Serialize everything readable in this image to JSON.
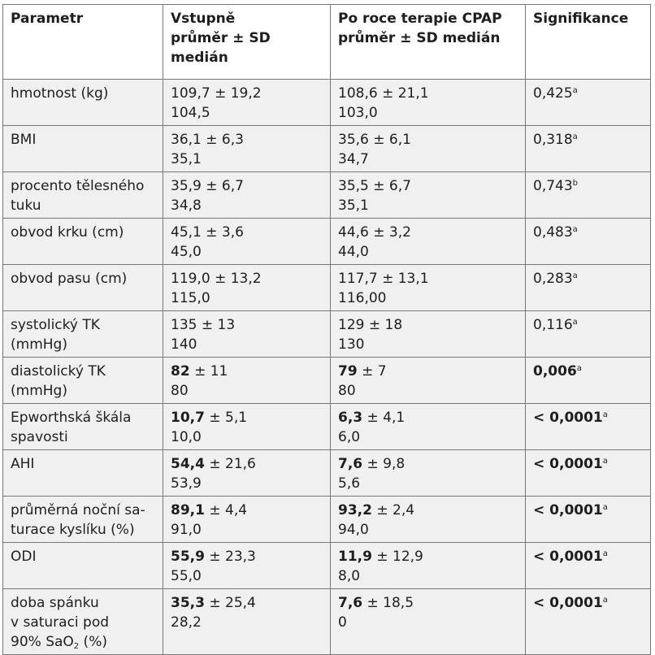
{
  "table": {
    "headers": {
      "parametr": "Parametr",
      "vstupne_l1": "Vstupně",
      "vstupne_l2": "průměr ± SD",
      "vstupne_l3": "medián",
      "po_roce_l1": "Po roce terapie CPAP",
      "po_roce_l2": "průměr ± SD medián",
      "signifikance": "Signifikance"
    },
    "rows": [
      {
        "param": [
          "hmotnost (kg)"
        ],
        "b_mean": "109,7",
        "b_sd": " ± 19,2",
        "b_bold": false,
        "b_median": "104,5",
        "a_mean": "108,6",
        "a_sd": " ± 21,1",
        "a_bold": false,
        "a_median": "103,0",
        "p": "0,425",
        "p_note": "a",
        "p_bold": false
      },
      {
        "param": [
          "BMI"
        ],
        "b_mean": "36,1",
        "b_sd": " ± 6,3",
        "b_bold": false,
        "b_median": "35,1",
        "a_mean": "35,6",
        "a_sd": " ± 6,1",
        "a_bold": false,
        "a_median": "34,7",
        "p": "0,318",
        "p_note": "a",
        "p_bold": false
      },
      {
        "param": [
          "procento tělesného",
          "tuku"
        ],
        "b_mean": "35,9",
        "b_sd": " ± 6,7",
        "b_bold": false,
        "b_median": "34,8",
        "a_mean": "35,5",
        "a_sd": " ± 6,7",
        "a_bold": false,
        "a_median": "35,1",
        "p": "0,743",
        "p_note": "b",
        "p_bold": false
      },
      {
        "param": [
          "obvod krku (cm)"
        ],
        "b_mean": "45,1",
        "b_sd": " ± 3,6",
        "b_bold": false,
        "b_median": "45,0",
        "a_mean": "44,6",
        "a_sd": " ± 3,2",
        "a_bold": false,
        "a_median": "44,0",
        "p": "0,483",
        "p_note": "a",
        "p_bold": false
      },
      {
        "param": [
          "obvod pasu (cm)"
        ],
        "b_mean": "119,0",
        "b_sd": " ± 13,2",
        "b_bold": false,
        "b_median": "115,0",
        "a_mean": "117,7",
        "a_sd": " ± 13,1",
        "a_bold": false,
        "a_median": "116,00",
        "p": "0,283",
        "p_note": "a",
        "p_bold": false
      },
      {
        "param": [
          "systolický TK",
          "(mmHg)"
        ],
        "b_mean": "135",
        "b_sd": " ± 13",
        "b_bold": false,
        "b_median": "140",
        "a_mean": "129",
        "a_sd": " ± 18",
        "a_bold": false,
        "a_median": "130",
        "p": "0,116",
        "p_note": "a",
        "p_bold": false
      },
      {
        "param": [
          "diastolický TK",
          "(mmHg)"
        ],
        "b_mean": "82",
        "b_sd": " ± 11",
        "b_bold": true,
        "b_median": "80",
        "a_mean": "79",
        "a_sd": " ± 7",
        "a_bold": true,
        "a_median": "80",
        "p": "0,006",
        "p_note": "a",
        "p_bold": true
      },
      {
        "param": [
          "Epworthská škála",
          "spavosti"
        ],
        "b_mean": "10,7",
        "b_sd": " ± 5,1",
        "b_bold": true,
        "b_median": "10,0",
        "a_mean": "6,3",
        "a_sd": " ± 4,1",
        "a_bold": true,
        "a_median": "6,0",
        "p": "< 0,0001",
        "p_note": "a",
        "p_bold": true
      },
      {
        "param": [
          "AHI"
        ],
        "b_mean": "54,4",
        "b_sd": " ± 21,6",
        "b_bold": true,
        "b_median": "53,9",
        "a_mean": "7,6",
        "a_sd": " ± 9,8",
        "a_bold": true,
        "a_median": "5,6",
        "p": "< 0,0001",
        "p_note": "a",
        "p_bold": true
      },
      {
        "param": [
          "průměrná noční sa-",
          "turace kyslíku (%)"
        ],
        "b_mean": "89,1",
        "b_sd": " ± 4,4",
        "b_bold": true,
        "b_median": "91,0",
        "a_mean": "93,2",
        "a_sd": " ± 2,4",
        "a_bold": true,
        "a_median": "94,0",
        "p": "< 0,0001",
        "p_note": "a",
        "p_bold": true
      },
      {
        "param": [
          "ODI"
        ],
        "b_mean": "55,9",
        "b_sd": " ± 23,3",
        "b_bold": true,
        "b_median": "55,0",
        "a_mean": "11,9",
        "a_sd": " ± 12,9",
        "a_bold": true,
        "a_median": "8,0",
        "p": "< 0,0001",
        "p_note": "a",
        "p_bold": true
      },
      {
        "param": [
          "doba spánku",
          "v saturaci pod",
          "90% SaO",
          "2",
          " (%)"
        ],
        "b_mean": "35,3",
        "b_sd": " ± 25,4",
        "b_bold": true,
        "b_median": "28,2",
        "a_mean": "7,6",
        "a_sd": " ± 18,5",
        "a_bold": true,
        "a_median": "0",
        "p": "< 0,0001",
        "p_note": "a",
        "p_bold": true
      }
    ]
  }
}
